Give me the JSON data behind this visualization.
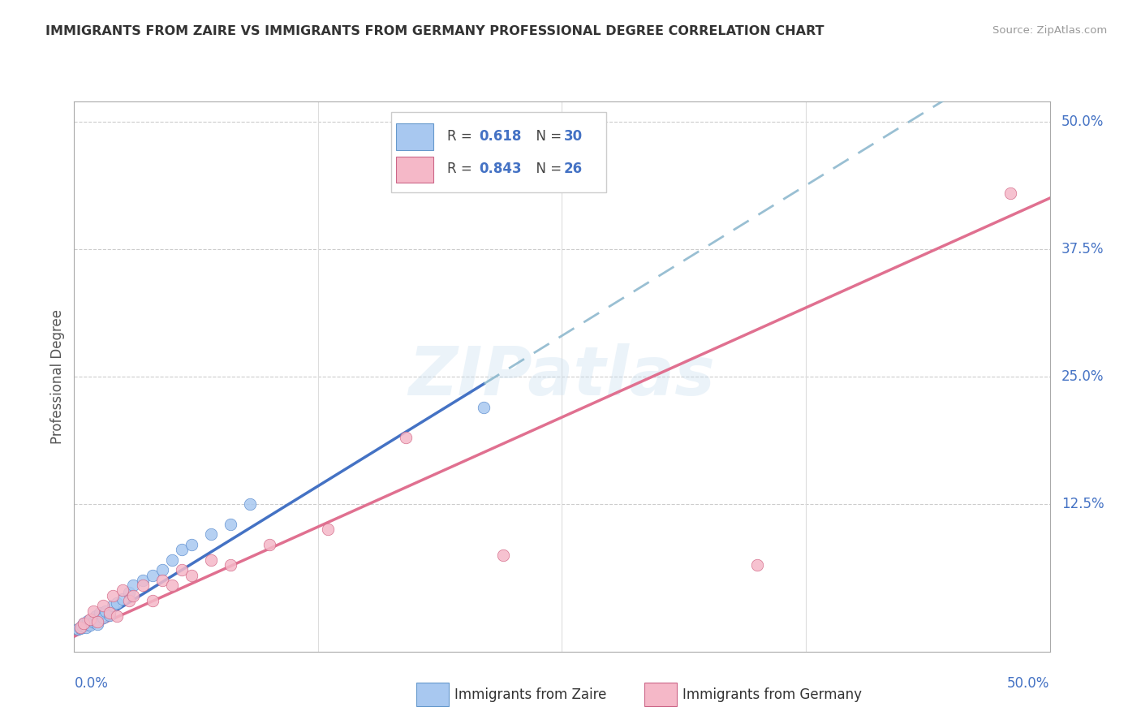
{
  "title": "IMMIGRANTS FROM ZAIRE VS IMMIGRANTS FROM GERMANY PROFESSIONAL DEGREE CORRELATION CHART",
  "source": "Source: ZipAtlas.com",
  "ylabel": "Professional Degree",
  "ytick_labels": [
    "12.5%",
    "25.0%",
    "37.5%",
    "50.0%"
  ],
  "ytick_values": [
    12.5,
    25.0,
    37.5,
    50.0
  ],
  "xlim": [
    0.0,
    50.0
  ],
  "ylim": [
    -2.0,
    52.0
  ],
  "legend_r_zaire": "0.618",
  "legend_n_zaire": "30",
  "legend_r_germany": "0.843",
  "legend_n_germany": "26",
  "zaire_color": "#A8C8F0",
  "germany_color": "#F5B8C8",
  "zaire_line_color": "#4472C4",
  "germany_line_color": "#E07090",
  "zaire_dash_color": "#80B0C8",
  "watermark_text": "ZIPatlas",
  "zaire_line_slope": 1.18,
  "zaire_line_intercept": -0.5,
  "zaire_solid_end_x": 21.0,
  "germany_line_slope": 0.86,
  "germany_line_intercept": -0.5,
  "zaire_x": [
    0.2,
    0.3,
    0.4,
    0.5,
    0.6,
    0.7,
    0.8,
    0.9,
    1.0,
    1.1,
    1.2,
    1.3,
    1.5,
    1.6,
    1.8,
    2.0,
    2.2,
    2.5,
    2.8,
    3.0,
    3.5,
    4.0,
    4.5,
    5.0,
    5.5,
    6.0,
    7.0,
    8.0,
    9.0,
    21.0
  ],
  "zaire_y": [
    0.2,
    0.3,
    0.5,
    0.8,
    0.4,
    1.0,
    0.6,
    1.2,
    0.9,
    1.5,
    0.7,
    1.8,
    1.3,
    2.0,
    1.6,
    2.5,
    2.8,
    3.2,
    3.8,
    4.5,
    5.0,
    5.5,
    6.0,
    7.0,
    8.0,
    8.5,
    9.5,
    10.5,
    12.5,
    22.0
  ],
  "germany_x": [
    0.3,
    0.5,
    0.8,
    1.0,
    1.2,
    1.5,
    1.8,
    2.0,
    2.2,
    2.5,
    2.8,
    3.0,
    3.5,
    4.0,
    4.5,
    5.0,
    5.5,
    6.0,
    7.0,
    8.0,
    10.0,
    13.0,
    17.0,
    22.0,
    35.0,
    48.0
  ],
  "germany_y": [
    0.4,
    0.8,
    1.2,
    2.0,
    0.9,
    2.5,
    1.8,
    3.5,
    1.5,
    4.0,
    3.0,
    3.5,
    4.5,
    3.0,
    5.0,
    4.5,
    6.0,
    5.5,
    7.0,
    6.5,
    8.5,
    10.0,
    19.0,
    7.5,
    6.5,
    43.0
  ]
}
